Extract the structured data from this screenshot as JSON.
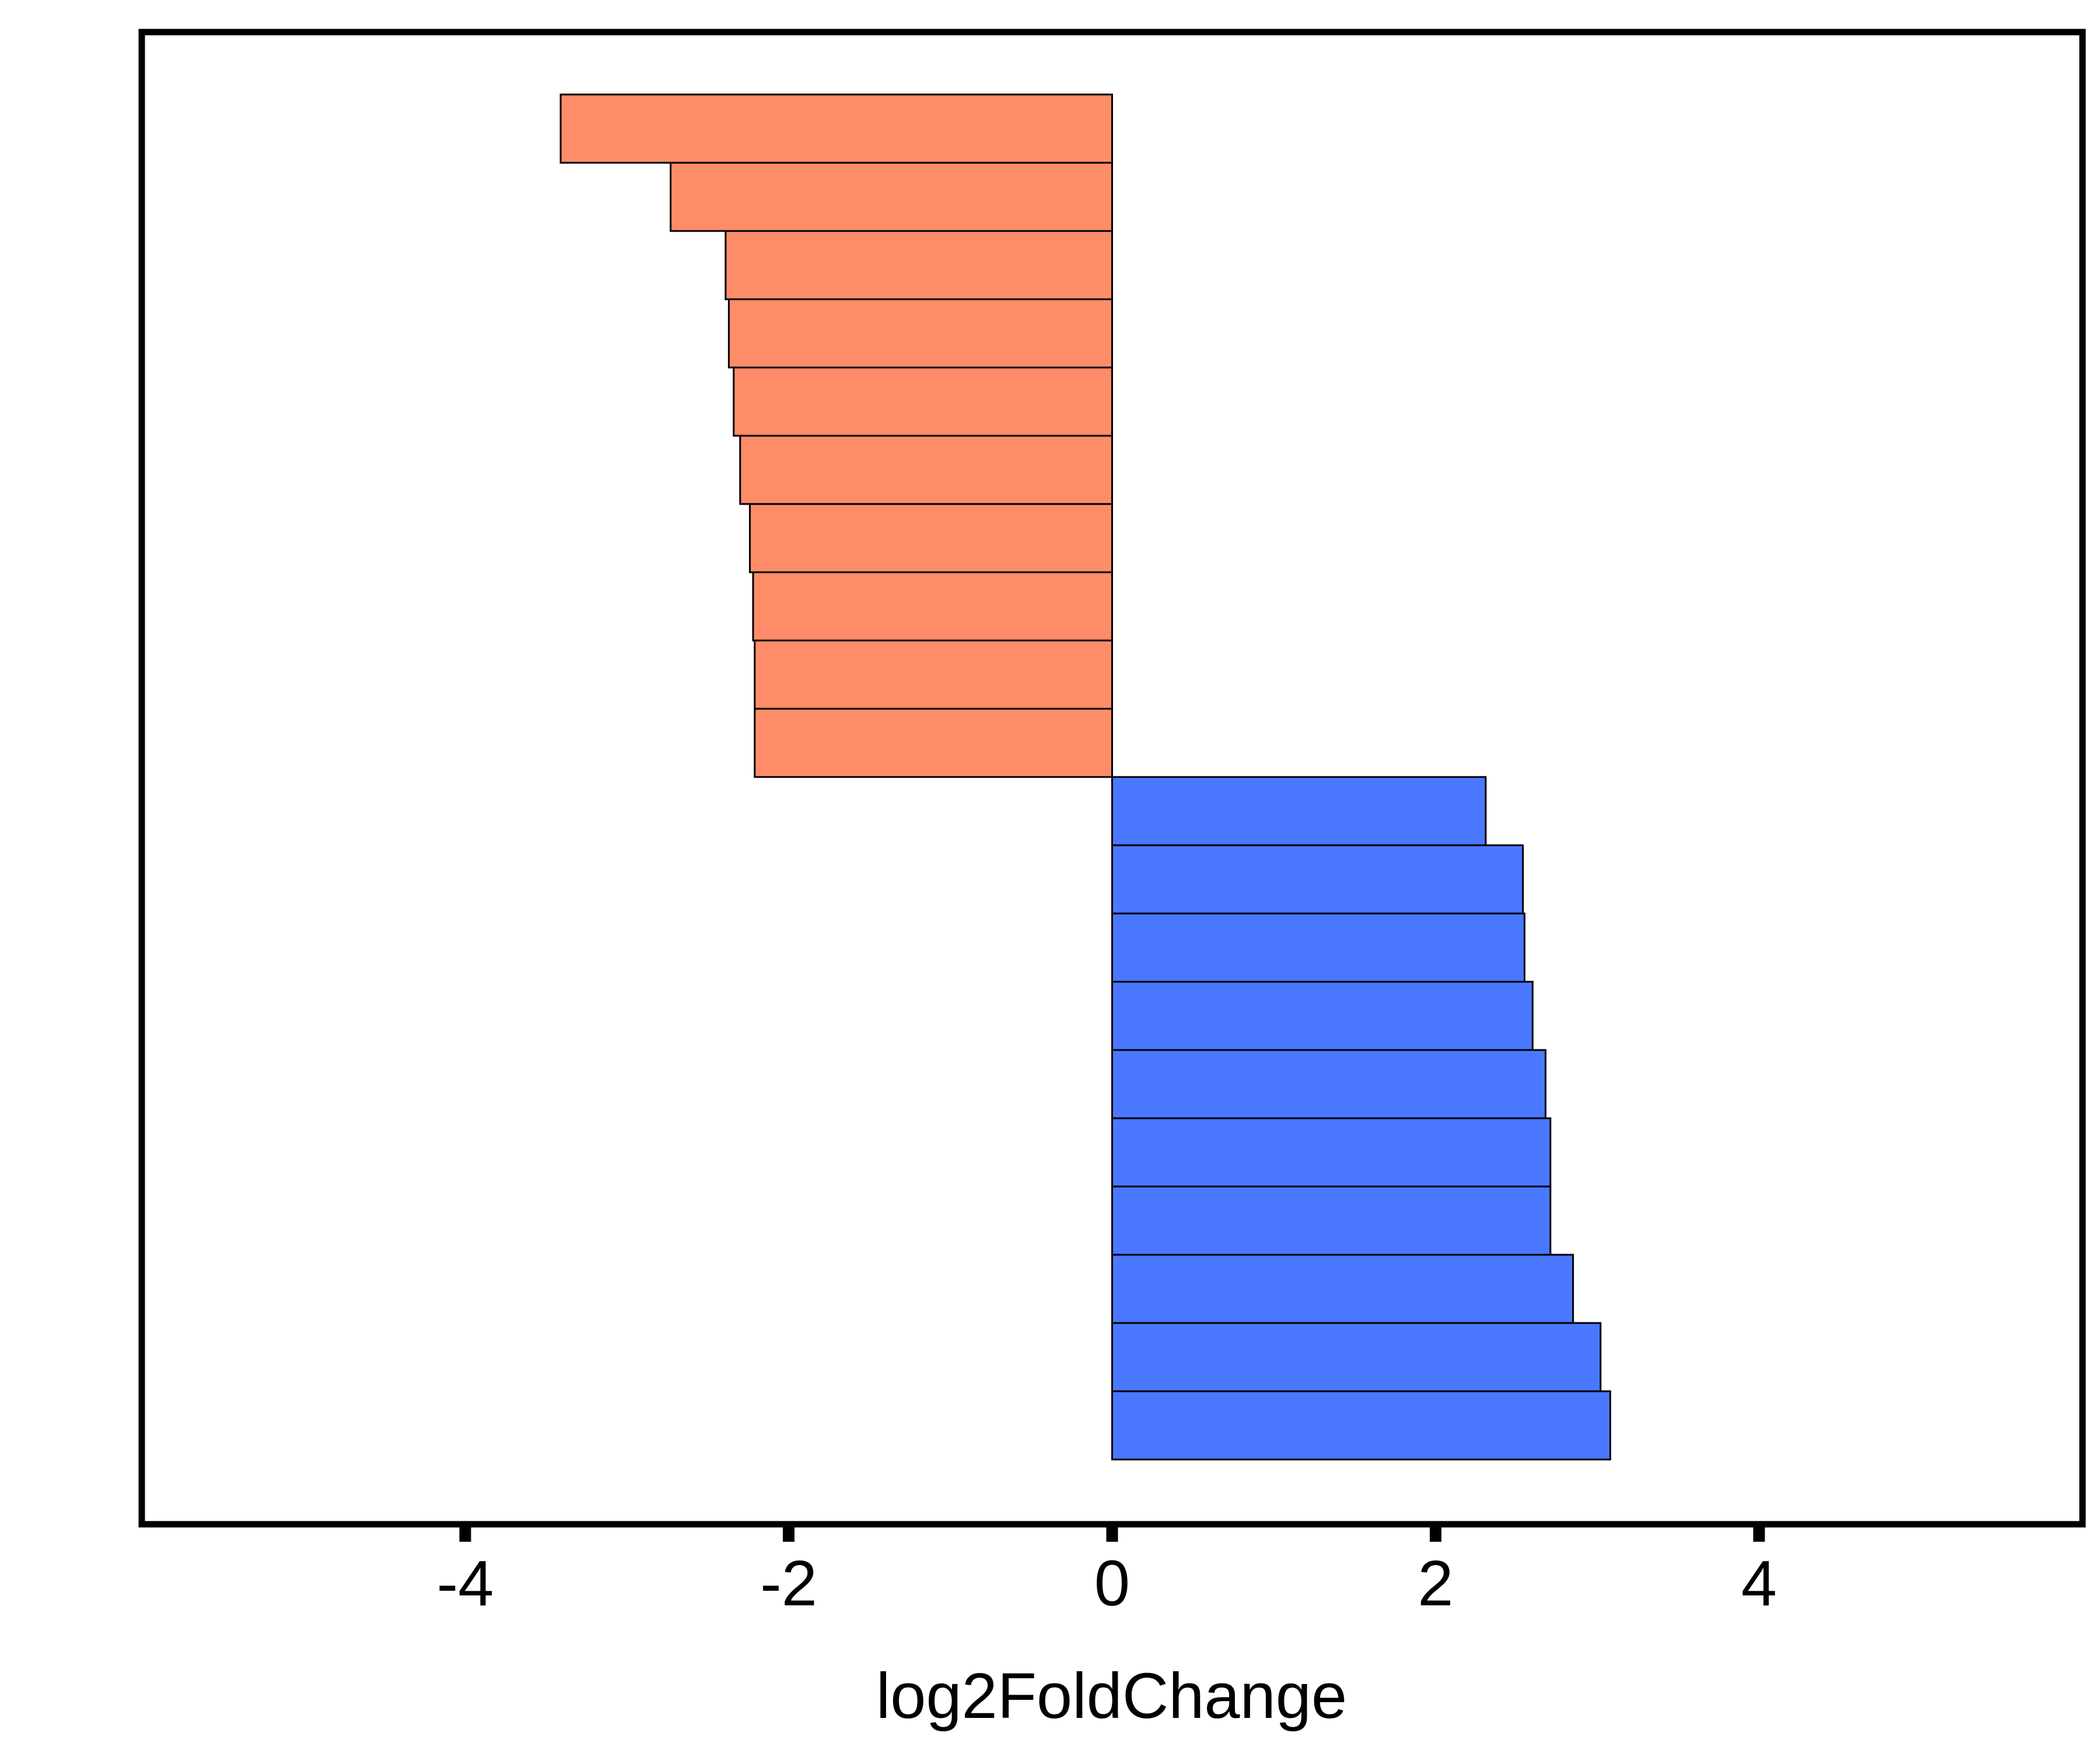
{
  "chart_data": {
    "type": "bar",
    "orientation": "horizontal",
    "xlabel": "log2FoldChange",
    "ylabel": "",
    "xlim": [
      -6.0,
      6.0
    ],
    "xticks": [
      -4,
      -2,
      0,
      2,
      4
    ],
    "xtick_labels": [
      "-4",
      "-2",
      "0",
      "2",
      "4"
    ],
    "y_tick_labels_shown": false,
    "grid": false,
    "legend": "none",
    "bar_outline_color": "#000000",
    "series": [
      {
        "direction": "down",
        "color": "#FF8C69",
        "values": [
          -3.41,
          -2.73,
          -2.39,
          -2.37,
          -2.34,
          -2.3,
          -2.24,
          -2.22,
          -2.21,
          -2.21
        ]
      },
      {
        "direction": "up",
        "color": "#4A78FF",
        "values": [
          2.31,
          2.54,
          2.55,
          2.6,
          2.68,
          2.71,
          2.71,
          2.85,
          3.02,
          3.08
        ]
      }
    ]
  }
}
